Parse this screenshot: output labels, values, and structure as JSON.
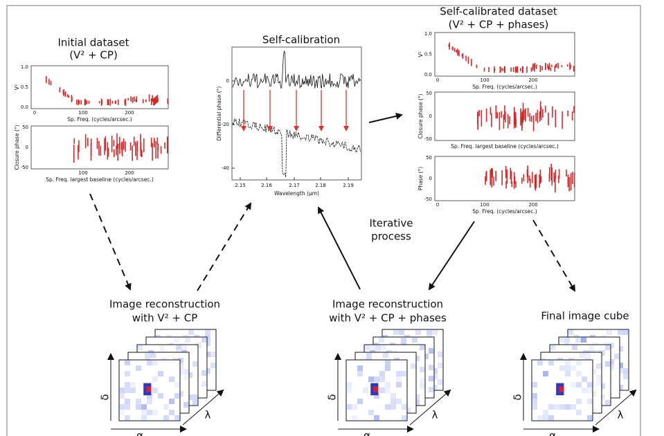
{
  "initial_dataset": {
    "title": [
      "Initial dataset",
      "(V² + CP)"
    ],
    "plots": [
      {
        "ylabel": "V²",
        "yticks": [
          "1.0",
          "0.5",
          "0.0"
        ],
        "xticks": [
          "0",
          "100",
          "200"
        ],
        "xlabel": "Sp. Freq. (cycles/arcsec.)"
      },
      {
        "ylabel": "Closure phase (°)",
        "yticks": [
          "50",
          "0",
          "-50"
        ],
        "xticks": [
          "100",
          "200"
        ],
        "xlabel": "Sp. Freq. largest baseline (cycles/arcsec.)"
      }
    ]
  },
  "self_calibration": {
    "title": "Self-calibration",
    "ylabel": "Differential phase (°)",
    "yticks": [
      "0",
      "-20",
      "-40"
    ],
    "xticks": [
      "2.15",
      "2.16",
      "2.17",
      "2.18",
      "2.19"
    ],
    "xlabel": "Wavelength (µm)"
  },
  "self_calibrated_dataset": {
    "title": [
      "Self-calibrated dataset",
      "(V² + CP + phases)"
    ],
    "plots": [
      {
        "ylabel": "V²",
        "yticks": [
          "1.0",
          "0.5",
          "0.0"
        ],
        "xticks": [
          "0",
          "100",
          "200"
        ],
        "xlabel": "Sp. Freq. (cycles/arcsec.)"
      },
      {
        "ylabel": "Closure phase (°)",
        "yticks": [
          "50",
          "0",
          "-50"
        ],
        "xticks": [],
        "xlabel": "Sp. Freq. largest baseline (cycles/arcsec.)"
      },
      {
        "ylabel": "Phase (°)",
        "yticks": [
          "50",
          "0",
          "-50"
        ],
        "xticks": [
          "0",
          "100",
          "200"
        ],
        "xlabel": "Sp. Freq. (cycles/arcsec.)"
      }
    ]
  },
  "iterative_process": [
    "Iterative",
    "process"
  ],
  "reconstructions": [
    {
      "label": [
        "Image reconstruction",
        "with V² + CP"
      ],
      "alpha": "α",
      "delta": "δ",
      "lambda": "λ"
    },
    {
      "label": [
        "Image reconstruction",
        "with V² + CP + phases"
      ],
      "alpha": "α",
      "delta": "δ",
      "lambda": "λ"
    },
    {
      "label": [
        "Final image cube"
      ],
      "alpha": "α",
      "delta": "δ",
      "lambda": "λ"
    }
  ]
}
